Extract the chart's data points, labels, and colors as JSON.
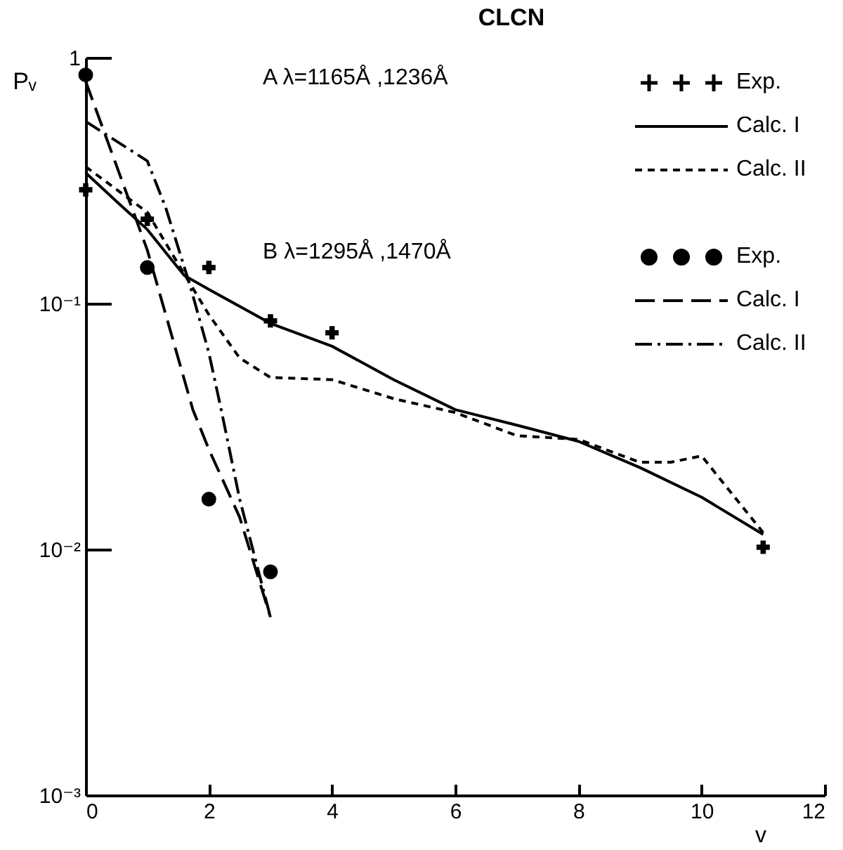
{
  "chart_data": {
    "type": "line",
    "title": "CLCN",
    "xlabel": "v",
    "ylabel": "Pᵥ",
    "annotations": [
      "A  λ=1165Å ,1236Å",
      "B  λ=1295Å ,1470Å"
    ],
    "xlim": [
      0,
      12
    ],
    "xticks": [
      0,
      2,
      4,
      6,
      8,
      10,
      12
    ],
    "ylim": [
      0.001,
      1
    ],
    "yticks": [
      1,
      {
        "value": 0.1,
        "label": "10⁻¹"
      },
      {
        "value": 0.01,
        "label": "10⁻²"
      },
      {
        "value": 0.001,
        "label": "10⁻³"
      }
    ],
    "log": "y",
    "grid": false,
    "legend": "top right",
    "series": [
      {
        "name": "Exp.",
        "type": "scatter",
        "marker": "cross",
        "color": "#000000",
        "x": [
          0,
          1,
          2,
          3,
          4,
          11
        ],
        "values": [
          0.29,
          0.22,
          0.14,
          0.085,
          0.076,
          0.0102
        ]
      },
      {
        "name": "Calc. I",
        "line_style": "solid",
        "color": "#000000",
        "x": [
          0,
          0.5,
          1,
          1.6,
          2,
          3,
          4,
          5,
          6,
          7,
          8,
          9,
          10,
          11
        ],
        "values": [
          0.34,
          0.26,
          0.2,
          0.13,
          0.114,
          0.083,
          0.067,
          0.049,
          0.037,
          0.032,
          0.0275,
          0.0215,
          0.0163,
          0.0115
        ]
      },
      {
        "name": "Calc. II",
        "line_style": "dotted",
        "color": "#000000",
        "x": [
          0,
          1,
          1.5,
          2,
          2.5,
          3,
          4,
          5,
          6,
          7,
          8,
          9,
          9.5,
          10,
          11
        ],
        "values": [
          0.36,
          0.235,
          0.145,
          0.09,
          0.06,
          0.05,
          0.049,
          0.041,
          0.036,
          0.029,
          0.028,
          0.0226,
          0.0226,
          0.024,
          0.0117
        ]
      },
      {
        "name": "Exp.",
        "type": "scatter",
        "marker": "circle",
        "color": "#000000",
        "x": [
          0,
          1,
          2,
          3
        ],
        "values": [
          0.85,
          0.14,
          0.016,
          0.0081
        ]
      },
      {
        "name": "Calc. I",
        "line_style": "dashed",
        "color": "#000000",
        "x": [
          0,
          1,
          1.74,
          2,
          2.5,
          3
        ],
        "values": [
          0.8,
          0.165,
          0.037,
          0.0255,
          0.0135,
          0.0053
        ]
      },
      {
        "name": "Calc. II",
        "line_style": "dashdot",
        "color": "#000000",
        "x": [
          0,
          1,
          1.3,
          1.7,
          2,
          2.2,
          2.5,
          3
        ],
        "values": [
          0.55,
          0.38,
          0.245,
          0.117,
          0.063,
          0.037,
          0.016,
          0.0053
        ]
      }
    ]
  }
}
